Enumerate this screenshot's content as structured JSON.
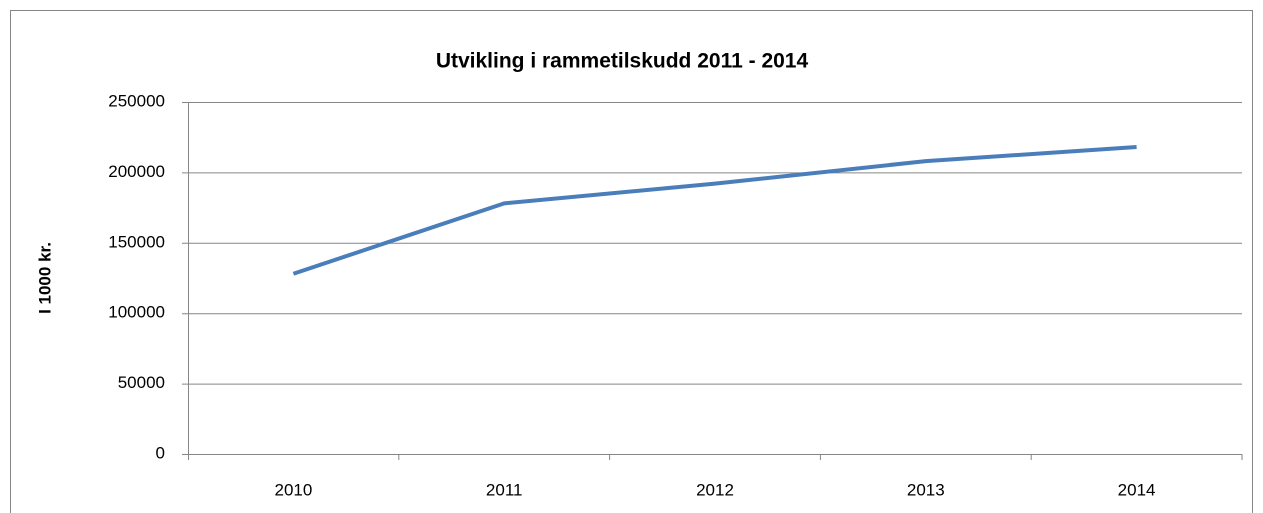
{
  "chart_data": {
    "type": "line",
    "title": "Utvikling i rammetilskudd 2011 - 2014",
    "y_label": "I 1000 kr.",
    "categories": [
      "2010",
      "2011",
      "2012",
      "2013",
      "2014"
    ],
    "values": [
      128000,
      178000,
      192000,
      208000,
      218000
    ],
    "color": "#4a7ebb",
    "ylim": [
      0,
      250000
    ],
    "yticks": [
      0,
      50000,
      100000,
      150000,
      200000,
      250000
    ],
    "grid": true
  }
}
